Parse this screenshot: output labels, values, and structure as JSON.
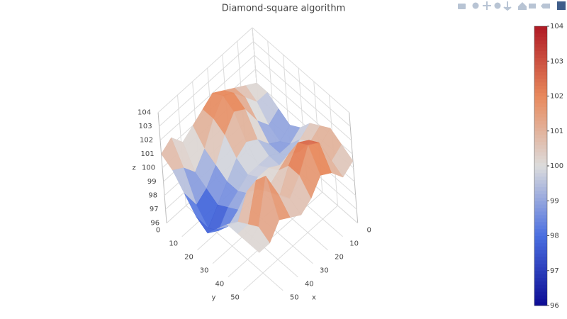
{
  "chart_data": {
    "type": "surface",
    "title": "Diamond-square algorithm",
    "xlabel": "x",
    "ylabel": "y",
    "zlabel": "z",
    "x": [
      0,
      7,
      14,
      21,
      28,
      35,
      42,
      49,
      56,
      63
    ],
    "y": [
      0,
      7,
      14,
      21,
      28,
      35,
      42,
      49,
      56,
      63
    ],
    "z": [
      [
        100,
        100.5,
        101,
        101.5,
        102,
        101.5,
        101,
        100.5,
        101.5,
        101
      ],
      [
        100,
        100,
        101,
        102,
        102.5,
        101.5,
        100,
        99,
        100,
        100.5
      ],
      [
        99.5,
        99,
        100,
        101.5,
        102,
        101,
        99.5,
        98.5,
        98,
        99.5
      ],
      [
        99,
        98.5,
        99,
        100,
        100.5,
        100,
        99,
        98,
        97,
        98.5
      ],
      [
        99.5,
        99,
        99,
        99.5,
        99.5,
        99.5,
        99,
        98.5,
        97.5,
        98
      ],
      [
        100.5,
        100,
        99.5,
        99.5,
        100,
        100,
        99.5,
        99,
        98.5,
        99
      ],
      [
        101,
        100.5,
        100.5,
        101,
        100.5,
        100,
        100.5,
        101,
        99.5,
        100
      ],
      [
        101.5,
        101,
        102,
        102.5,
        101.5,
        100,
        101,
        102.5,
        100,
        100
      ],
      [
        101,
        100.5,
        102.5,
        103,
        101.5,
        100.5,
        101.5,
        103.5,
        100.5,
        100
      ],
      [
        100.5,
        100,
        101,
        101.5,
        100.5,
        100,
        100.5,
        101,
        100,
        100
      ]
    ],
    "xlim": [
      0,
      63
    ],
    "ylim": [
      0,
      63
    ],
    "zlim": [
      96,
      104
    ],
    "xticks": [
      0,
      10,
      20,
      30,
      40,
      50
    ],
    "yticks": [
      0,
      10,
      20,
      30,
      40,
      50
    ],
    "zticks": [
      96,
      97,
      98,
      99,
      100,
      101,
      102,
      103,
      104
    ],
    "clim": [
      96,
      104
    ],
    "colorbar_ticks": [
      96,
      97,
      98,
      99,
      100,
      101,
      102,
      103,
      104
    ],
    "colorscale": [
      "#0c0c94",
      "#4a6ee0",
      "#dcdcdc",
      "#e8895c",
      "#b01a25"
    ],
    "grid": true
  }
}
